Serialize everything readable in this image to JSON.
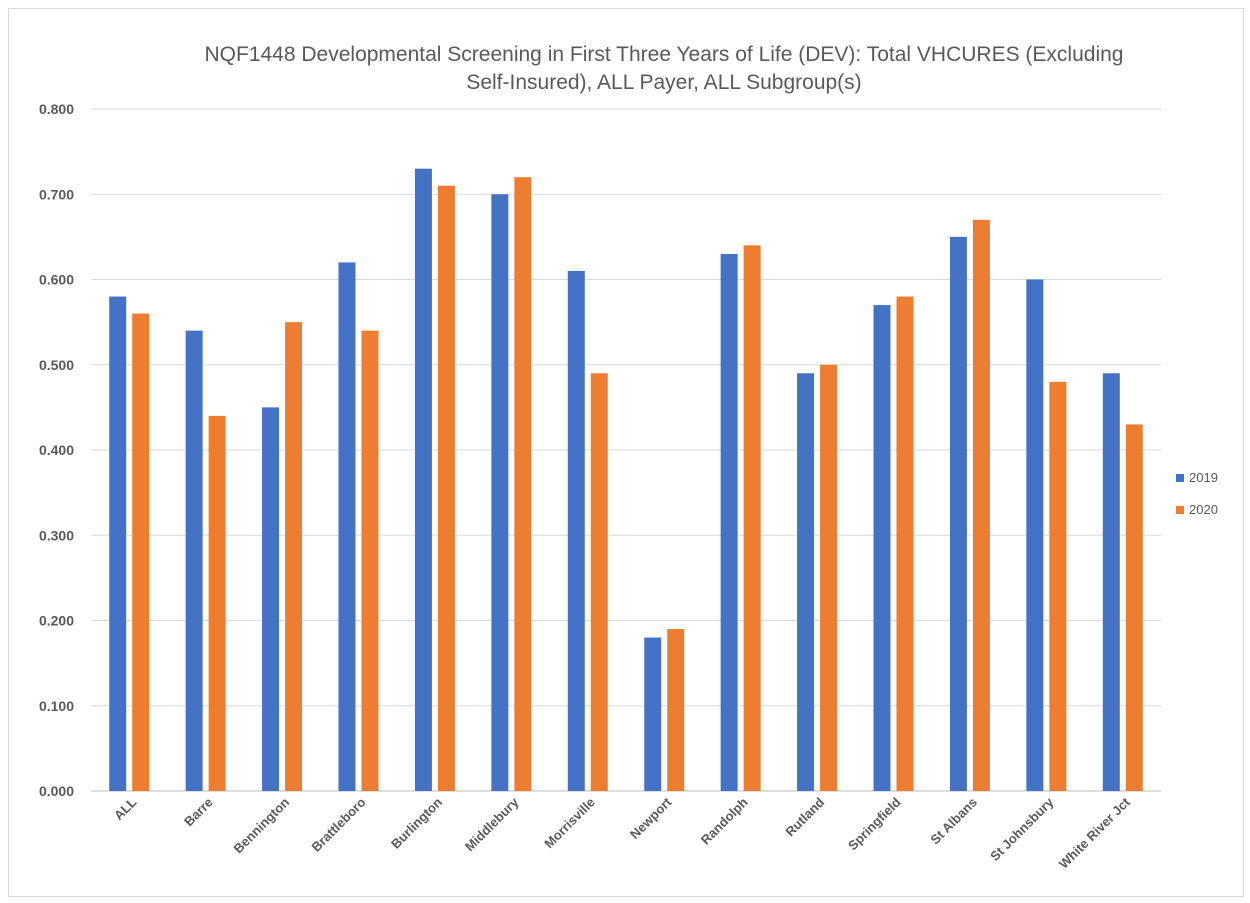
{
  "chart_data": {
    "type": "bar",
    "title_lines": [
      "NQF1448 Developmental Screening in First Three Years of Life (DEV): Total VHCURES (Excluding",
      "Self-Insured), ALL Payer, ALL Subgroup(s)"
    ],
    "categories": [
      "ALL",
      "Barre",
      "Bennington",
      "Brattleboro",
      "Burlington",
      "Middlebury",
      "Morrisville",
      "Newport",
      "Randolph",
      "Rutland",
      "Springfield",
      "St Albans",
      "St Johnsbury",
      "White River Jct"
    ],
    "series": [
      {
        "name": "2019",
        "color": "#4472C4",
        "values": [
          0.58,
          0.54,
          0.45,
          0.62,
          0.73,
          0.7,
          0.61,
          0.18,
          0.63,
          0.49,
          0.57,
          0.65,
          0.6,
          0.49
        ]
      },
      {
        "name": "2020",
        "color": "#ED7D31",
        "values": [
          0.56,
          0.44,
          0.55,
          0.54,
          0.71,
          0.72,
          0.49,
          0.19,
          0.64,
          0.5,
          0.58,
          0.67,
          0.48,
          0.43
        ]
      }
    ],
    "ylim": [
      0,
      0.8
    ],
    "yticks": [
      "0.000",
      "0.100",
      "0.200",
      "0.300",
      "0.400",
      "0.500",
      "0.600",
      "0.700",
      "0.800"
    ],
    "xlabel": "",
    "ylabel": "",
    "grid": true,
    "legend_position": "right"
  }
}
